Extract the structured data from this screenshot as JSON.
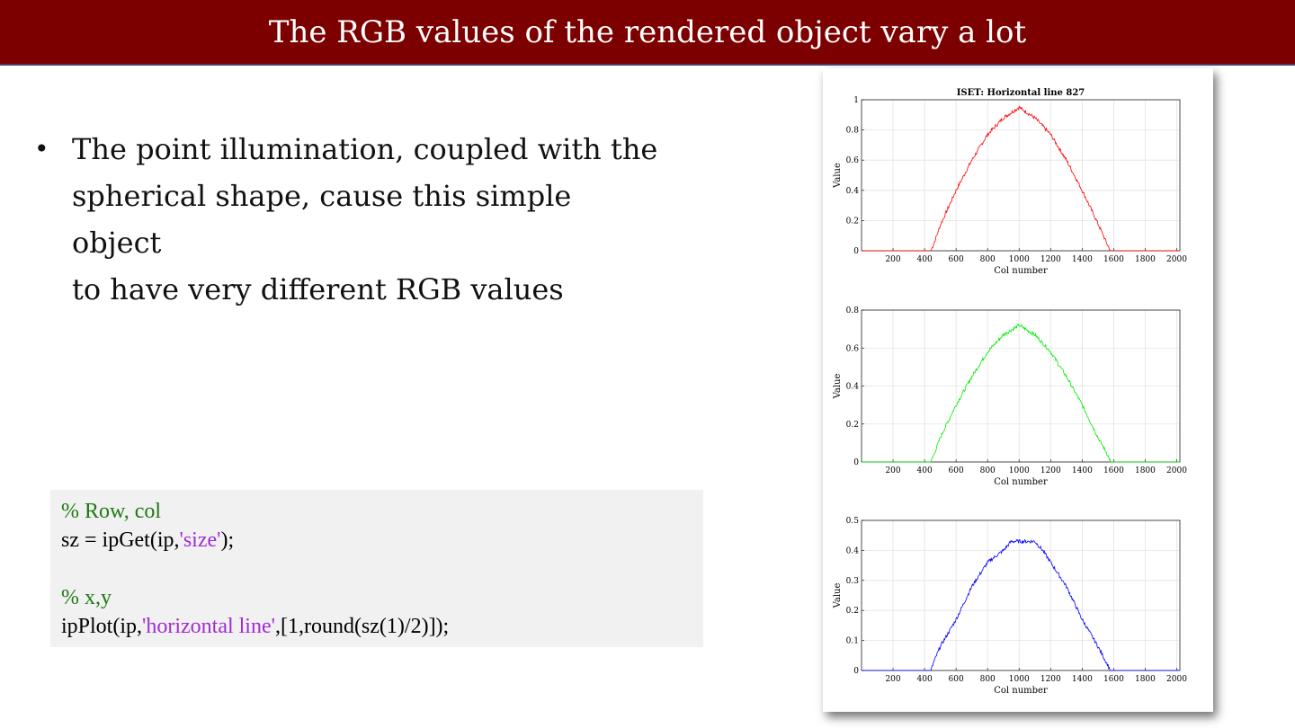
{
  "slide": {
    "title": "The RGB values of the rendered object vary a lot",
    "bullet": "The point illumination, coupled with the spherical shape, cause this simple object to have very different RGB values",
    "bullet_lines": [
      "The point illumination, coupled with the",
      "spherical shape, cause this simple object",
      "to have very different RGB values"
    ]
  },
  "code": {
    "line1": "% Row, col",
    "line2_pre": "sz = ipGet(ip,",
    "line2_str": "'size'",
    "line2_post": ");",
    "line4": "% x,y",
    "line5_pre": "ipPlot(ip,",
    "line5_str": "'horizontal line'",
    "line5_post": ",[1,round(sz(1)/2)]);"
  },
  "colors": {
    "title_bar": "#7d0000",
    "comment": "#1e7a12",
    "string": "#a12bd4",
    "red_series": "#ff0000",
    "green_series": "#00ee00",
    "blue_series": "#0000ff"
  },
  "chart_data": [
    {
      "type": "line",
      "title": "ISET:  Horizontal line 827",
      "xlabel": "Col number",
      "ylabel": "Value",
      "xlim": [
        0,
        2020
      ],
      "ylim": [
        0,
        1
      ],
      "xticks": [
        200,
        400,
        600,
        800,
        1000,
        1200,
        1400,
        1600,
        1800,
        2000
      ],
      "yticks": [
        0,
        0.2,
        0.4,
        0.6,
        0.8,
        1
      ],
      "grid": true,
      "color": "#ff0000",
      "series": [
        {
          "x": [
            0,
            440,
            460,
            500,
            600,
            700,
            800,
            900,
            1000,
            1100,
            1200,
            1300,
            1400,
            1500,
            1560,
            1580,
            2020
          ],
          "values": [
            0,
            0,
            0.05,
            0.17,
            0.4,
            0.6,
            0.77,
            0.88,
            0.95,
            0.88,
            0.77,
            0.6,
            0.4,
            0.18,
            0.04,
            0,
            0
          ]
        }
      ]
    },
    {
      "type": "line",
      "title": "",
      "xlabel": "Col number",
      "ylabel": "Value",
      "xlim": [
        0,
        2020
      ],
      "ylim": [
        0,
        0.8
      ],
      "xticks": [
        200,
        400,
        600,
        800,
        1000,
        1200,
        1400,
        1600,
        1800,
        2000
      ],
      "yticks": [
        0,
        0.2,
        0.4,
        0.6,
        0.8
      ],
      "grid": true,
      "color": "#00ee00",
      "series": [
        {
          "x": [
            0,
            440,
            460,
            500,
            600,
            700,
            800,
            900,
            1000,
            1100,
            1200,
            1300,
            1400,
            1500,
            1560,
            1580,
            2020
          ],
          "values": [
            0,
            0,
            0.04,
            0.13,
            0.3,
            0.45,
            0.58,
            0.67,
            0.72,
            0.67,
            0.58,
            0.45,
            0.3,
            0.13,
            0.04,
            0,
            0
          ]
        }
      ]
    },
    {
      "type": "line",
      "title": "",
      "xlabel": "Col number",
      "ylabel": "Value",
      "xlim": [
        0,
        2020
      ],
      "ylim": [
        0,
        0.5
      ],
      "xticks": [
        200,
        400,
        600,
        800,
        1000,
        1200,
        1400,
        1600,
        1800,
        2000
      ],
      "yticks": [
        0,
        0.1,
        0.2,
        0.3,
        0.4,
        0.5
      ],
      "grid": true,
      "color": "#0000ff",
      "series": [
        {
          "x": [
            0,
            440,
            460,
            500,
            600,
            700,
            800,
            900,
            950,
            1000,
            1100,
            1150,
            1200,
            1300,
            1400,
            1500,
            1560,
            1580,
            2020
          ],
          "values": [
            0,
            0,
            0.03,
            0.08,
            0.17,
            0.28,
            0.36,
            0.4,
            0.43,
            0.43,
            0.43,
            0.4,
            0.36,
            0.28,
            0.17,
            0.08,
            0.02,
            0,
            0
          ]
        }
      ]
    }
  ]
}
